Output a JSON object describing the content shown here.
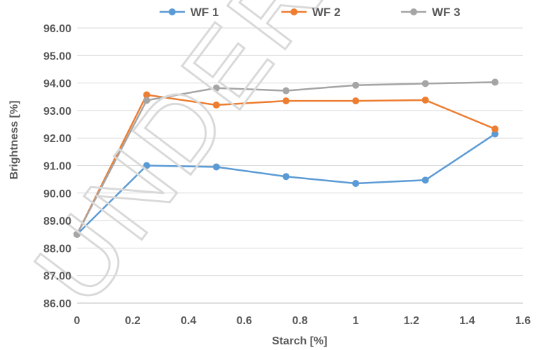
{
  "chart_data": {
    "type": "line",
    "xlabel": "Starch [%]",
    "ylabel": "Brightness [%]",
    "xlim": [
      0,
      1.6
    ],
    "ylim": [
      86.0,
      96.0
    ],
    "x_ticks": [
      "0",
      "0.2",
      "0.4",
      "0.6",
      "0.8",
      "1",
      "1.2",
      "1.4",
      "1.6"
    ],
    "y_ticks": [
      "86.00",
      "87.00",
      "88.00",
      "89.00",
      "90.00",
      "91.00",
      "92.00",
      "93.00",
      "94.00",
      "95.00",
      "96.00"
    ],
    "grid": "horizontal",
    "legend_position": "top",
    "x": [
      0,
      0.25,
      0.5,
      0.75,
      1.0,
      1.25,
      1.5
    ],
    "series": [
      {
        "name": "WF 1",
        "color": "#5b9bd5",
        "values": [
          88.5,
          91.0,
          90.95,
          90.6,
          90.35,
          90.47,
          92.15
        ]
      },
      {
        "name": "WF 2",
        "color": "#ed7d31",
        "values": [
          88.5,
          93.57,
          93.2,
          93.35,
          93.35,
          93.38,
          92.33
        ]
      },
      {
        "name": "WF 3",
        "color": "#a5a5a5",
        "values": [
          88.5,
          93.37,
          93.82,
          93.72,
          93.92,
          93.98,
          94.03
        ]
      }
    ],
    "watermark": "UNDER PEER"
  }
}
